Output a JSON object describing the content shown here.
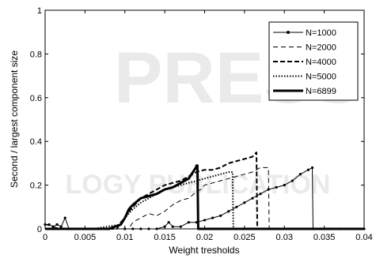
{
  "chart_data": {
    "type": "line",
    "title": "",
    "xlabel": "Weight tresholds",
    "ylabel": "Second / largest component size",
    "xlim": [
      0,
      0.04
    ],
    "ylim": [
      0,
      1
    ],
    "x_ticks": [
      0,
      0.005,
      0.01,
      0.015,
      0.02,
      0.025,
      0.03,
      0.035,
      0.04
    ],
    "x_tick_labels": [
      "0",
      "0.005",
      "0.01",
      "0.015",
      "0.02",
      "0.025",
      "0.03",
      "0.035",
      "0.04"
    ],
    "y_ticks": [
      0,
      0.2,
      0.4,
      0.6,
      0.8,
      1
    ],
    "y_tick_labels": [
      "0",
      "0.2",
      "0.4",
      "0.6",
      "0.8",
      "1"
    ],
    "grid": false,
    "legend_position": "top-right",
    "series": [
      {
        "name": "N=1000",
        "style": "solid-markers",
        "x": [
          0,
          0.0005,
          0.001,
          0.0015,
          0.002,
          0.0025,
          0.003,
          0.004,
          0.006,
          0.008,
          0.01,
          0.011,
          0.012,
          0.013,
          0.014,
          0.015,
          0.0155,
          0.016,
          0.017,
          0.018,
          0.019,
          0.02,
          0.021,
          0.022,
          0.023,
          0.024,
          0.025,
          0.026,
          0.027,
          0.028,
          0.029,
          0.03,
          0.031,
          0.032,
          0.033,
          0.0335,
          0.0336,
          0.0345,
          0.0355,
          0.037,
          0.04
        ],
        "y": [
          0.02,
          0.02,
          0.01,
          0.02,
          0.01,
          0.05,
          0.0,
          0.0,
          0.0,
          0.0,
          0.0,
          0.0,
          0.0,
          0.0,
          0.0,
          0.01,
          0.03,
          0.01,
          0.01,
          0.03,
          0.03,
          0.04,
          0.05,
          0.06,
          0.08,
          0.1,
          0.12,
          0.14,
          0.16,
          0.18,
          0.19,
          0.2,
          0.22,
          0.25,
          0.27,
          0.28,
          0.0,
          0.0,
          0.0,
          0.0,
          0.0
        ]
      },
      {
        "name": "N=2000",
        "style": "dashed-thin",
        "x": [
          0,
          0.001,
          0.002,
          0.004,
          0.008,
          0.0105,
          0.011,
          0.012,
          0.013,
          0.014,
          0.015,
          0.016,
          0.017,
          0.018,
          0.019,
          0.0195,
          0.02,
          0.021,
          0.022,
          0.023,
          0.024,
          0.025,
          0.026,
          0.027,
          0.028,
          0.0281,
          0.029,
          0.032,
          0.036,
          0.04
        ],
        "y": [
          0.02,
          0.01,
          0.0,
          0.0,
          0.0,
          0.0,
          0.03,
          0.05,
          0.07,
          0.06,
          0.08,
          0.11,
          0.13,
          0.14,
          0.17,
          0.18,
          0.2,
          0.21,
          0.22,
          0.23,
          0.24,
          0.25,
          0.26,
          0.28,
          0.28,
          0.0,
          0.0,
          0.0,
          0.0,
          0.0
        ]
      },
      {
        "name": "N=4000",
        "style": "dashed-thick",
        "x": [
          0,
          0.001,
          0.002,
          0.005,
          0.009,
          0.0095,
          0.01,
          0.0105,
          0.011,
          0.012,
          0.013,
          0.014,
          0.015,
          0.016,
          0.017,
          0.018,
          0.019,
          0.02,
          0.021,
          0.022,
          0.023,
          0.024,
          0.025,
          0.026,
          0.0265,
          0.0266,
          0.028,
          0.032,
          0.036,
          0.04
        ],
        "y": [
          0.0,
          0.0,
          0.0,
          0.0,
          0.0,
          0.03,
          0.05,
          0.08,
          0.1,
          0.14,
          0.16,
          0.18,
          0.2,
          0.21,
          0.22,
          0.24,
          0.26,
          0.27,
          0.27,
          0.28,
          0.3,
          0.31,
          0.32,
          0.33,
          0.35,
          0.0,
          0.0,
          0.0,
          0.0,
          0.0
        ]
      },
      {
        "name": "N=5000",
        "style": "dotted-thick",
        "x": [
          0,
          0.002,
          0.006,
          0.0095,
          0.01,
          0.011,
          0.012,
          0.013,
          0.014,
          0.015,
          0.016,
          0.017,
          0.018,
          0.019,
          0.02,
          0.021,
          0.022,
          0.023,
          0.0235,
          0.0236,
          0.026,
          0.03,
          0.035,
          0.04
        ],
        "y": [
          0.0,
          0.0,
          0.0,
          0.02,
          0.05,
          0.09,
          0.12,
          0.14,
          0.16,
          0.18,
          0.19,
          0.2,
          0.21,
          0.22,
          0.23,
          0.24,
          0.25,
          0.26,
          0.26,
          0.0,
          0.0,
          0.0,
          0.0,
          0.0
        ]
      },
      {
        "name": "N=6899",
        "style": "solid-thick",
        "x": [
          0,
          0.004,
          0.008,
          0.0095,
          0.01,
          0.0105,
          0.011,
          0.012,
          0.013,
          0.014,
          0.015,
          0.016,
          0.017,
          0.018,
          0.0189,
          0.019,
          0.0191,
          0.0192,
          0.0195,
          0.02,
          0.025,
          0.03,
          0.035,
          0.04
        ],
        "y": [
          0.0,
          0.0,
          0.0,
          0.02,
          0.05,
          0.09,
          0.11,
          0.14,
          0.15,
          0.16,
          0.18,
          0.19,
          0.21,
          0.23,
          0.28,
          0.29,
          0.29,
          0.0,
          0.0,
          0.0,
          0.0,
          0.0,
          0.0,
          0.0
        ]
      }
    ]
  },
  "watermark": {
    "line1": "PRESS",
    "line2": "LOGY PUBLICATION"
  }
}
